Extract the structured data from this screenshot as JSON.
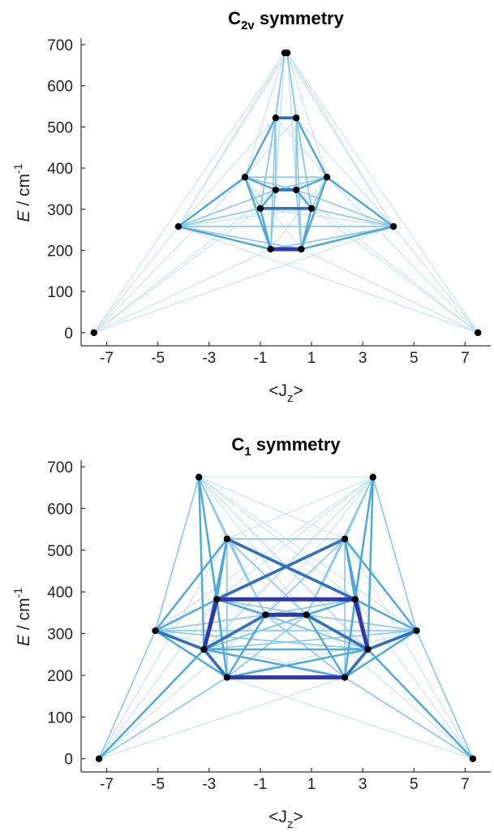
{
  "chart_data": [
    {
      "type": "scatter",
      "title": "C",
      "title_sub": "2v",
      "title_rest": " symmetry",
      "ylabel_italic": "E",
      "ylabel_rest": " / cm",
      "ylabel_sup": "-1",
      "xlabel_main": "<J",
      "xlabel_sub": "z",
      "xlabel_end": ">",
      "xlim": [
        -8,
        8
      ],
      "ylim": [
        -20,
        700
      ],
      "xticks": [
        -7,
        -5,
        -3,
        -1,
        1,
        3,
        5,
        7
      ],
      "yticks": [
        0,
        100,
        200,
        300,
        400,
        500,
        600,
        700
      ],
      "points": [
        {
          "x": -7.5,
          "y": 0
        },
        {
          "x": 7.5,
          "y": 0
        },
        {
          "x": -4.2,
          "y": 258
        },
        {
          "x": 4.2,
          "y": 258
        },
        {
          "x": -0.6,
          "y": 203
        },
        {
          "x": 0.6,
          "y": 203
        },
        {
          "x": -1.0,
          "y": 302
        },
        {
          "x": 1.0,
          "y": 302
        },
        {
          "x": -0.4,
          "y": 347
        },
        {
          "x": 0.4,
          "y": 347
        },
        {
          "x": -1.6,
          "y": 378
        },
        {
          "x": 1.6,
          "y": 378
        },
        {
          "x": -0.4,
          "y": 522
        },
        {
          "x": 0.4,
          "y": 522
        },
        {
          "x": -0.05,
          "y": 680
        },
        {
          "x": 0.05,
          "y": 680
        }
      ],
      "transitions": [
        {
          "a": 14,
          "b": 0,
          "w": 1
        },
        {
          "a": 15,
          "b": 1,
          "w": 1
        },
        {
          "a": 14,
          "b": 2,
          "w": 1
        },
        {
          "a": 15,
          "b": 3,
          "w": 1
        },
        {
          "a": 14,
          "b": 4,
          "w": 1
        },
        {
          "a": 15,
          "b": 5,
          "w": 1
        },
        {
          "a": 14,
          "b": 10,
          "w": 1
        },
        {
          "a": 15,
          "b": 11,
          "w": 1
        },
        {
          "a": 14,
          "b": 12,
          "w": 2
        },
        {
          "a": 15,
          "b": 13,
          "w": 2
        },
        {
          "a": 14,
          "b": 6,
          "w": 1
        },
        {
          "a": 15,
          "b": 7,
          "w": 1
        },
        {
          "a": 14,
          "b": 8,
          "w": 1
        },
        {
          "a": 15,
          "b": 9,
          "w": 1
        },
        {
          "a": 14,
          "b": 3,
          "w": 1
        },
        {
          "a": 15,
          "b": 2,
          "w": 1
        },
        {
          "a": 12,
          "b": 13,
          "w": 4
        },
        {
          "a": 12,
          "b": 10,
          "w": 3
        },
        {
          "a": 13,
          "b": 11,
          "w": 3
        },
        {
          "a": 12,
          "b": 8,
          "w": 2
        },
        {
          "a": 13,
          "b": 9,
          "w": 2
        },
        {
          "a": 12,
          "b": 6,
          "w": 2
        },
        {
          "a": 13,
          "b": 7,
          "w": 2
        },
        {
          "a": 12,
          "b": 4,
          "w": 2
        },
        {
          "a": 13,
          "b": 5,
          "w": 2
        },
        {
          "a": 12,
          "b": 2,
          "w": 1
        },
        {
          "a": 13,
          "b": 3,
          "w": 1
        },
        {
          "a": 12,
          "b": 11,
          "w": 1
        },
        {
          "a": 13,
          "b": 10,
          "w": 1
        },
        {
          "a": 10,
          "b": 11,
          "w": 2
        },
        {
          "a": 10,
          "b": 2,
          "w": 3
        },
        {
          "a": 11,
          "b": 3,
          "w": 3
        },
        {
          "a": 10,
          "b": 4,
          "w": 3
        },
        {
          "a": 11,
          "b": 5,
          "w": 3
        },
        {
          "a": 10,
          "b": 8,
          "w": 3
        },
        {
          "a": 11,
          "b": 9,
          "w": 3
        },
        {
          "a": 10,
          "b": 6,
          "w": 2
        },
        {
          "a": 11,
          "b": 7,
          "w": 2
        },
        {
          "a": 10,
          "b": 5,
          "w": 1
        },
        {
          "a": 11,
          "b": 4,
          "w": 1
        },
        {
          "a": 10,
          "b": 9,
          "w": 2
        },
        {
          "a": 11,
          "b": 8,
          "w": 2
        },
        {
          "a": 8,
          "b": 9,
          "w": 4
        },
        {
          "a": 8,
          "b": 6,
          "w": 3
        },
        {
          "a": 9,
          "b": 7,
          "w": 3
        },
        {
          "a": 8,
          "b": 4,
          "w": 2
        },
        {
          "a": 9,
          "b": 5,
          "w": 2
        },
        {
          "a": 8,
          "b": 2,
          "w": 2
        },
        {
          "a": 9,
          "b": 3,
          "w": 2
        },
        {
          "a": 6,
          "b": 7,
          "w": 4
        },
        {
          "a": 6,
          "b": 4,
          "w": 3
        },
        {
          "a": 7,
          "b": 5,
          "w": 3
        },
        {
          "a": 6,
          "b": 2,
          "w": 2
        },
        {
          "a": 7,
          "b": 3,
          "w": 2
        },
        {
          "a": 6,
          "b": 3,
          "w": 1
        },
        {
          "a": 7,
          "b": 2,
          "w": 1
        },
        {
          "a": 4,
          "b": 5,
          "w": 5
        },
        {
          "a": 4,
          "b": 2,
          "w": 3
        },
        {
          "a": 5,
          "b": 3,
          "w": 3
        },
        {
          "a": 4,
          "b": 3,
          "w": 2
        },
        {
          "a": 5,
          "b": 2,
          "w": 2
        },
        {
          "a": 2,
          "b": 3,
          "w": 2
        },
        {
          "a": 2,
          "b": 0,
          "w": 1
        },
        {
          "a": 3,
          "b": 1,
          "w": 1
        },
        {
          "a": 2,
          "b": 1,
          "w": 1
        },
        {
          "a": 3,
          "b": 0,
          "w": 1
        },
        {
          "a": 4,
          "b": 0,
          "w": 1
        },
        {
          "a": 5,
          "b": 1,
          "w": 1
        },
        {
          "a": 10,
          "b": 0,
          "w": 1
        },
        {
          "a": 11,
          "b": 1,
          "w": 1
        },
        {
          "a": 6,
          "b": 0,
          "w": 1
        },
        {
          "a": 7,
          "b": 1,
          "w": 1
        },
        {
          "a": 8,
          "b": 0,
          "w": 1
        },
        {
          "a": 9,
          "b": 1,
          "w": 1
        }
      ]
    },
    {
      "type": "scatter",
      "title": "C",
      "title_sub": "1",
      "title_rest": " symmetry",
      "ylabel_italic": "E",
      "ylabel_rest": " / cm",
      "ylabel_sup": "-1",
      "xlabel_main": "<J",
      "xlabel_sub": "z",
      "xlabel_end": ">",
      "xlim": [
        -8,
        8
      ],
      "ylim": [
        -20,
        700
      ],
      "xticks": [
        -7,
        -5,
        -3,
        -1,
        1,
        3,
        5,
        7
      ],
      "yticks": [
        0,
        100,
        200,
        300,
        400,
        500,
        600,
        700
      ],
      "points": [
        {
          "x": -7.3,
          "y": 0
        },
        {
          "x": 7.3,
          "y": 0
        },
        {
          "x": -2.3,
          "y": 195
        },
        {
          "x": 2.3,
          "y": 195
        },
        {
          "x": -3.2,
          "y": 262
        },
        {
          "x": 3.2,
          "y": 262
        },
        {
          "x": -5.1,
          "y": 307
        },
        {
          "x": 5.1,
          "y": 307
        },
        {
          "x": -0.8,
          "y": 345
        },
        {
          "x": 0.8,
          "y": 345
        },
        {
          "x": -2.7,
          "y": 382
        },
        {
          "x": 2.7,
          "y": 382
        },
        {
          "x": -2.3,
          "y": 527
        },
        {
          "x": 2.3,
          "y": 527
        },
        {
          "x": -3.4,
          "y": 675
        },
        {
          "x": 3.4,
          "y": 675
        }
      ],
      "transitions": [
        {
          "a": 14,
          "b": 15,
          "w": 1
        },
        {
          "a": 14,
          "b": 12,
          "w": 2
        },
        {
          "a": 15,
          "b": 13,
          "w": 2
        },
        {
          "a": 14,
          "b": 10,
          "w": 3
        },
        {
          "a": 15,
          "b": 11,
          "w": 3
        },
        {
          "a": 14,
          "b": 4,
          "w": 3
        },
        {
          "a": 15,
          "b": 5,
          "w": 3
        },
        {
          "a": 14,
          "b": 6,
          "w": 2
        },
        {
          "a": 15,
          "b": 7,
          "w": 2
        },
        {
          "a": 14,
          "b": 8,
          "w": 2
        },
        {
          "a": 15,
          "b": 9,
          "w": 2
        },
        {
          "a": 14,
          "b": 2,
          "w": 2
        },
        {
          "a": 15,
          "b": 3,
          "w": 2
        },
        {
          "a": 14,
          "b": 13,
          "w": 1
        },
        {
          "a": 15,
          "b": 12,
          "w": 1
        },
        {
          "a": 14,
          "b": 11,
          "w": 1
        },
        {
          "a": 15,
          "b": 10,
          "w": 1
        },
        {
          "a": 14,
          "b": 5,
          "w": 1
        },
        {
          "a": 15,
          "b": 4,
          "w": 1
        },
        {
          "a": 14,
          "b": 9,
          "w": 1
        },
        {
          "a": 15,
          "b": 8,
          "w": 1
        },
        {
          "a": 14,
          "b": 1,
          "w": 1
        },
        {
          "a": 15,
          "b": 0,
          "w": 1
        },
        {
          "a": 14,
          "b": 7,
          "w": 1
        },
        {
          "a": 15,
          "b": 6,
          "w": 1
        },
        {
          "a": 12,
          "b": 13,
          "w": 2
        },
        {
          "a": 12,
          "b": 11,
          "w": 4
        },
        {
          "a": 13,
          "b": 10,
          "w": 4
        },
        {
          "a": 12,
          "b": 10,
          "w": 3
        },
        {
          "a": 13,
          "b": 11,
          "w": 3
        },
        {
          "a": 12,
          "b": 4,
          "w": 3
        },
        {
          "a": 13,
          "b": 5,
          "w": 3
        },
        {
          "a": 12,
          "b": 6,
          "w": 3
        },
        {
          "a": 13,
          "b": 7,
          "w": 3
        },
        {
          "a": 12,
          "b": 8,
          "w": 2
        },
        {
          "a": 13,
          "b": 9,
          "w": 2
        },
        {
          "a": 12,
          "b": 2,
          "w": 2
        },
        {
          "a": 13,
          "b": 3,
          "w": 2
        },
        {
          "a": 12,
          "b": 9,
          "w": 2
        },
        {
          "a": 13,
          "b": 8,
          "w": 2
        },
        {
          "a": 10,
          "b": 11,
          "w": 5
        },
        {
          "a": 10,
          "b": 4,
          "w": 5
        },
        {
          "a": 11,
          "b": 5,
          "w": 5
        },
        {
          "a": 10,
          "b": 2,
          "w": 3
        },
        {
          "a": 11,
          "b": 3,
          "w": 3
        },
        {
          "a": 10,
          "b": 6,
          "w": 3
        },
        {
          "a": 11,
          "b": 7,
          "w": 3
        },
        {
          "a": 10,
          "b": 8,
          "w": 3
        },
        {
          "a": 11,
          "b": 9,
          "w": 3
        },
        {
          "a": 10,
          "b": 5,
          "w": 2
        },
        {
          "a": 11,
          "b": 4,
          "w": 2
        },
        {
          "a": 10,
          "b": 9,
          "w": 2
        },
        {
          "a": 11,
          "b": 8,
          "w": 2
        },
        {
          "a": 8,
          "b": 9,
          "w": 5
        },
        {
          "a": 8,
          "b": 4,
          "w": 4
        },
        {
          "a": 9,
          "b": 5,
          "w": 4
        },
        {
          "a": 8,
          "b": 2,
          "w": 3
        },
        {
          "a": 9,
          "b": 3,
          "w": 3
        },
        {
          "a": 8,
          "b": 6,
          "w": 2
        },
        {
          "a": 9,
          "b": 7,
          "w": 2
        },
        {
          "a": 8,
          "b": 5,
          "w": 2
        },
        {
          "a": 9,
          "b": 4,
          "w": 2
        },
        {
          "a": 8,
          "b": 3,
          "w": 2
        },
        {
          "a": 9,
          "b": 2,
          "w": 2
        },
        {
          "a": 6,
          "b": 4,
          "w": 4
        },
        {
          "a": 7,
          "b": 5,
          "w": 4
        },
        {
          "a": 6,
          "b": 2,
          "w": 3
        },
        {
          "a": 7,
          "b": 3,
          "w": 3
        },
        {
          "a": 6,
          "b": 7,
          "w": 2
        },
        {
          "a": 6,
          "b": 5,
          "w": 2
        },
        {
          "a": 7,
          "b": 4,
          "w": 2
        },
        {
          "a": 6,
          "b": 0,
          "w": 2
        },
        {
          "a": 7,
          "b": 1,
          "w": 2
        },
        {
          "a": 6,
          "b": 3,
          "w": 1
        },
        {
          "a": 7,
          "b": 2,
          "w": 1
        },
        {
          "a": 4,
          "b": 5,
          "w": 3
        },
        {
          "a": 4,
          "b": 2,
          "w": 4
        },
        {
          "a": 5,
          "b": 3,
          "w": 4
        },
        {
          "a": 4,
          "b": 3,
          "w": 3
        },
        {
          "a": 5,
          "b": 2,
          "w": 3
        },
        {
          "a": 4,
          "b": 0,
          "w": 3
        },
        {
          "a": 5,
          "b": 1,
          "w": 3
        },
        {
          "a": 2,
          "b": 3,
          "w": 5
        },
        {
          "a": 2,
          "b": 0,
          "w": 2
        },
        {
          "a": 3,
          "b": 1,
          "w": 2
        },
        {
          "a": 2,
          "b": 1,
          "w": 1
        },
        {
          "a": 3,
          "b": 0,
          "w": 1
        },
        {
          "a": 10,
          "b": 0,
          "w": 1
        },
        {
          "a": 11,
          "b": 1,
          "w": 1
        },
        {
          "a": 12,
          "b": 0,
          "w": 1
        },
        {
          "a": 13,
          "b": 1,
          "w": 1
        },
        {
          "a": 8,
          "b": 0,
          "w": 1
        },
        {
          "a": 9,
          "b": 1,
          "w": 1
        }
      ]
    }
  ],
  "colors": {
    "w1": "#bfe1f2",
    "w2": "#86c8ea",
    "w3": "#4aa7df",
    "w4": "#2e6fc0",
    "w5": "#2f3aa8",
    "point": "#000000",
    "axis": "#333333"
  }
}
